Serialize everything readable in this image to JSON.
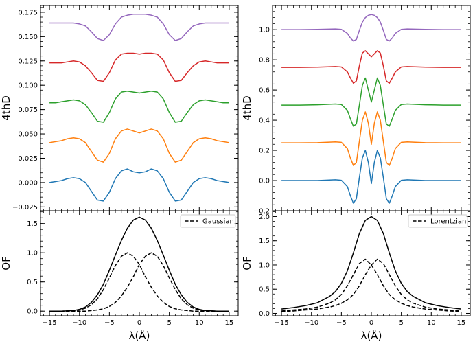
{
  "chart_data": [
    {
      "type": "line",
      "panel": "top-left",
      "ylabel": "4thD",
      "xlim": [
        -16.5,
        16.5
      ],
      "ylim": [
        -0.029,
        0.182
      ],
      "yticks": [
        -0.025,
        0.0,
        0.025,
        0.05,
        0.075,
        0.1,
        0.125,
        0.15,
        0.175
      ],
      "ytick_labels": [
        "−0.025",
        "0.000",
        "0.025",
        "0.050",
        "0.075",
        "0.100",
        "0.125",
        "0.150",
        "0.175"
      ],
      "xticks": [
        -15,
        -10,
        -5,
        0,
        5,
        10,
        15
      ],
      "show_xticklabels": false,
      "x": [
        -15,
        -14,
        -13,
        -12,
        -11,
        -10,
        -9,
        -8,
        -7,
        -6,
        -5,
        -4,
        -3,
        -2,
        -1,
        0,
        1,
        2,
        3,
        4,
        5,
        6,
        7,
        8,
        9,
        10,
        11,
        12,
        13,
        14,
        15
      ],
      "series": [
        {
          "color": "#1f77b4",
          "values": [
            0.0,
            0.001,
            0.002,
            0.004,
            0.005,
            0.004,
            0.0,
            -0.009,
            -0.018,
            -0.019,
            -0.01,
            0.004,
            0.012,
            0.014,
            0.011,
            0.01,
            0.011,
            0.014,
            0.012,
            0.004,
            -0.01,
            -0.019,
            -0.018,
            -0.009,
            0.0,
            0.004,
            0.005,
            0.004,
            0.002,
            0.001,
            0.0
          ]
        },
        {
          "color": "#ff7f0e",
          "values": [
            0.041,
            0.042,
            0.043,
            0.045,
            0.046,
            0.045,
            0.041,
            0.032,
            0.023,
            0.021,
            0.03,
            0.045,
            0.053,
            0.055,
            0.053,
            0.051,
            0.053,
            0.055,
            0.053,
            0.045,
            0.03,
            0.021,
            0.023,
            0.032,
            0.041,
            0.045,
            0.046,
            0.045,
            0.043,
            0.042,
            0.041
          ]
        },
        {
          "color": "#2ca02c",
          "values": [
            0.082,
            0.082,
            0.083,
            0.084,
            0.085,
            0.084,
            0.08,
            0.072,
            0.063,
            0.062,
            0.072,
            0.086,
            0.093,
            0.094,
            0.093,
            0.092,
            0.093,
            0.094,
            0.093,
            0.086,
            0.072,
            0.062,
            0.063,
            0.072,
            0.08,
            0.084,
            0.085,
            0.084,
            0.083,
            0.082,
            0.082
          ]
        },
        {
          "color": "#d62728",
          "values": [
            0.123,
            0.123,
            0.123,
            0.124,
            0.125,
            0.124,
            0.12,
            0.113,
            0.105,
            0.104,
            0.113,
            0.126,
            0.132,
            0.133,
            0.133,
            0.132,
            0.133,
            0.133,
            0.132,
            0.126,
            0.113,
            0.104,
            0.105,
            0.113,
            0.12,
            0.124,
            0.125,
            0.124,
            0.123,
            0.123,
            0.123
          ]
        },
        {
          "color": "#9467bd",
          "values": [
            0.164,
            0.164,
            0.164,
            0.164,
            0.164,
            0.163,
            0.161,
            0.155,
            0.148,
            0.146,
            0.152,
            0.163,
            0.17,
            0.172,
            0.173,
            0.173,
            0.173,
            0.172,
            0.17,
            0.163,
            0.152,
            0.146,
            0.148,
            0.155,
            0.161,
            0.163,
            0.164,
            0.164,
            0.164,
            0.164,
            0.164
          ]
        }
      ]
    },
    {
      "type": "line",
      "panel": "top-right",
      "ylabel": "4thD",
      "xlim": [
        -16.5,
        16.5
      ],
      "ylim": [
        -0.2,
        1.16
      ],
      "yticks": [
        -0.2,
        0.0,
        0.2,
        0.4,
        0.6,
        0.8,
        1.0
      ],
      "ytick_labels": [
        "−0.2",
        "0.0",
        "0.2",
        "0.4",
        "0.6",
        "0.8",
        "1.0"
      ],
      "xticks": [
        -15,
        -10,
        -5,
        0,
        5,
        10,
        15
      ],
      "show_xticklabels": false,
      "x": [
        -15,
        -12,
        -9,
        -6,
        -5,
        -4,
        -3.5,
        -3,
        -2.5,
        -2,
        -1.5,
        -1,
        -0.5,
        0,
        0.5,
        1,
        1.5,
        2,
        2.5,
        3,
        3.5,
        4,
        5,
        6,
        9,
        12,
        15
      ],
      "series": [
        {
          "color": "#1f77b4",
          "values": [
            0.0,
            0.0,
            0.0,
            0.005,
            0.002,
            -0.04,
            -0.1,
            -0.15,
            -0.12,
            0.02,
            0.15,
            0.2,
            0.12,
            -0.02,
            0.12,
            0.2,
            0.15,
            0.02,
            -0.12,
            -0.15,
            -0.1,
            -0.04,
            0.002,
            0.005,
            0.0,
            0.0,
            0.0
          ]
        },
        {
          "color": "#ff7f0e",
          "values": [
            0.25,
            0.25,
            0.251,
            0.256,
            0.253,
            0.212,
            0.15,
            0.1,
            0.12,
            0.26,
            0.4,
            0.455,
            0.38,
            0.24,
            0.38,
            0.455,
            0.4,
            0.26,
            0.12,
            0.1,
            0.15,
            0.212,
            0.253,
            0.256,
            0.251,
            0.25,
            0.25
          ]
        },
        {
          "color": "#2ca02c",
          "values": [
            0.5,
            0.5,
            0.502,
            0.507,
            0.504,
            0.465,
            0.41,
            0.36,
            0.375,
            0.5,
            0.63,
            0.68,
            0.6,
            0.52,
            0.6,
            0.68,
            0.63,
            0.5,
            0.375,
            0.36,
            0.41,
            0.465,
            0.504,
            0.507,
            0.502,
            0.5,
            0.5
          ]
        },
        {
          "color": "#d62728",
          "values": [
            0.75,
            0.75,
            0.752,
            0.756,
            0.753,
            0.72,
            0.68,
            0.645,
            0.66,
            0.76,
            0.845,
            0.86,
            0.84,
            0.82,
            0.84,
            0.86,
            0.845,
            0.76,
            0.66,
            0.645,
            0.68,
            0.72,
            0.753,
            0.756,
            0.752,
            0.75,
            0.75
          ]
        },
        {
          "color": "#9467bd",
          "values": [
            1.0,
            1.0,
            1.002,
            1.005,
            1.002,
            0.975,
            0.945,
            0.925,
            0.935,
            0.995,
            1.05,
            1.08,
            1.095,
            1.1,
            1.095,
            1.08,
            1.05,
            0.995,
            0.935,
            0.925,
            0.945,
            0.975,
            1.002,
            1.005,
            1.002,
            1.0,
            1.0
          ]
        }
      ]
    },
    {
      "type": "line",
      "panel": "bottom-left",
      "xlabel": "λ(Å)",
      "ylabel": "OF",
      "xlim": [
        -16.5,
        16.5
      ],
      "ylim": [
        -0.08,
        1.72
      ],
      "yticks": [
        0.0,
        0.5,
        1.0,
        1.5
      ],
      "ytick_labels": [
        "0.0",
        "0.5",
        "1.0",
        "1.5"
      ],
      "xticks": [
        -15,
        -10,
        -5,
        0,
        5,
        10,
        15
      ],
      "xtick_labels": [
        "−15",
        "−10",
        "−5",
        "0",
        "5",
        "10",
        "15"
      ],
      "legend": {
        "label": "Gaussian",
        "position": "upper-right",
        "style": "dashed"
      },
      "x": [
        -15,
        -13,
        -11,
        -10,
        -9,
        -8,
        -7,
        -6,
        -5,
        -4,
        -3,
        -2,
        -1,
        0,
        1,
        2,
        3,
        4,
        5,
        6,
        7,
        8,
        9,
        10,
        11,
        13,
        15
      ],
      "series": [
        {
          "color": "#000000",
          "style": "solid",
          "values": [
            0.0,
            0.0,
            0.01,
            0.03,
            0.07,
            0.15,
            0.28,
            0.46,
            0.7,
            0.96,
            1.21,
            1.42,
            1.56,
            1.61,
            1.56,
            1.42,
            1.21,
            0.96,
            0.7,
            0.46,
            0.28,
            0.15,
            0.07,
            0.03,
            0.01,
            0.0,
            0.0
          ]
        },
        {
          "color": "#000000",
          "style": "dashed",
          "values": [
            0.0,
            0.0,
            0.01,
            0.02,
            0.05,
            0.11,
            0.21,
            0.37,
            0.57,
            0.78,
            0.94,
            1.0,
            0.94,
            0.8,
            0.59,
            0.41,
            0.26,
            0.15,
            0.08,
            0.04,
            0.02,
            0.01,
            0.0,
            0.0,
            0.0,
            0.0,
            0.0
          ]
        },
        {
          "color": "#000000",
          "style": "dashed",
          "values": [
            0.0,
            0.0,
            0.0,
            0.0,
            0.0,
            0.01,
            0.02,
            0.04,
            0.08,
            0.15,
            0.26,
            0.41,
            0.59,
            0.8,
            0.94,
            1.0,
            0.94,
            0.78,
            0.57,
            0.37,
            0.21,
            0.11,
            0.05,
            0.02,
            0.01,
            0.0,
            0.0
          ]
        }
      ]
    },
    {
      "type": "line",
      "panel": "bottom-right",
      "xlabel": "λ(Å)",
      "ylabel": "OF",
      "xlim": [
        -16.5,
        16.5
      ],
      "ylim": [
        -0.05,
        2.12
      ],
      "yticks": [
        0.0,
        0.5,
        1.0,
        1.5,
        2.0
      ],
      "ytick_labels": [
        "0.0",
        "0.5",
        "1.0",
        "1.5",
        "2.0"
      ],
      "xticks": [
        -15,
        -10,
        -5,
        0,
        5,
        10,
        15
      ],
      "xtick_labels": [
        "−15",
        "−10",
        "−5",
        "0",
        "5",
        "10",
        "15"
      ],
      "legend": {
        "label": "Lorentzian",
        "position": "upper-right",
        "style": "dashed"
      },
      "x": [
        -15,
        -13,
        -11,
        -9,
        -7,
        -6,
        -5,
        -4,
        -3,
        -2,
        -1,
        0,
        1,
        2,
        3,
        4,
        5,
        6,
        7,
        9,
        11,
        13,
        15
      ],
      "series": [
        {
          "color": "#000000",
          "style": "solid",
          "values": [
            0.09,
            0.12,
            0.16,
            0.22,
            0.35,
            0.45,
            0.62,
            0.88,
            1.25,
            1.65,
            1.92,
            2.0,
            1.92,
            1.65,
            1.25,
            0.88,
            0.62,
            0.45,
            0.35,
            0.22,
            0.16,
            0.12,
            0.09
          ]
        },
        {
          "color": "#000000",
          "style": "dashed",
          "values": [
            0.05,
            0.07,
            0.09,
            0.13,
            0.21,
            0.28,
            0.39,
            0.57,
            0.8,
            1.03,
            1.12,
            1.0,
            0.8,
            0.57,
            0.39,
            0.28,
            0.21,
            0.16,
            0.13,
            0.09,
            0.07,
            0.05,
            0.04
          ]
        },
        {
          "color": "#000000",
          "style": "dashed",
          "values": [
            0.04,
            0.05,
            0.07,
            0.09,
            0.13,
            0.16,
            0.21,
            0.28,
            0.39,
            0.57,
            0.8,
            1.0,
            1.12,
            1.03,
            0.8,
            0.57,
            0.39,
            0.28,
            0.21,
            0.13,
            0.09,
            0.07,
            0.05
          ]
        }
      ]
    }
  ]
}
